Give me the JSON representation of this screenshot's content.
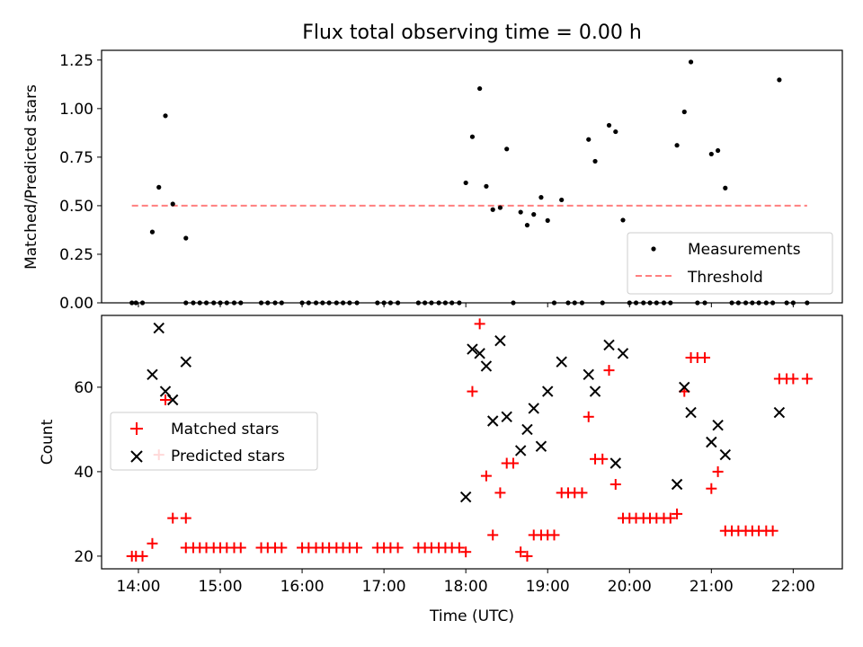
{
  "chart_data": [
    {
      "type": "scatter",
      "title": "Flux total observing time = 0.00 h",
      "xlabel": "",
      "ylabel": "Matched/Predicted stars",
      "ylim": [
        0,
        1.3
      ],
      "yticks": [
        "0.00",
        "0.25",
        "0.50",
        "0.75",
        "1.00",
        "1.25"
      ],
      "legend_position": "lower-right",
      "series": [
        {
          "name": "Measurements",
          "marker": "dot",
          "color": "#000000",
          "x": [
            13.92,
            13.97,
            14.05,
            14.17,
            14.25,
            14.33,
            14.42,
            14.58,
            14.58,
            14.67,
            14.75,
            14.83,
            14.92,
            15.0,
            15.08,
            15.17,
            15.25,
            15.5,
            15.58,
            15.67,
            15.75,
            16.0,
            16.08,
            16.17,
            16.25,
            16.33,
            16.42,
            16.5,
            16.58,
            16.67,
            16.92,
            17.0,
            17.08,
            17.17,
            17.42,
            17.5,
            17.58,
            17.67,
            17.75,
            17.83,
            17.92,
            18.0,
            18.08,
            18.17,
            18.25,
            18.33,
            18.42,
            18.5,
            18.58,
            18.67,
            18.75,
            18.83,
            18.92,
            19.0,
            19.08,
            19.17,
            19.25,
            19.33,
            19.42,
            19.5,
            19.58,
            19.67,
            19.75,
            19.83,
            19.92,
            20.0,
            20.08,
            20.17,
            20.25,
            20.33,
            20.42,
            20.5,
            20.58,
            20.67,
            20.75,
            20.83,
            20.92,
            21.0,
            21.08,
            21.17,
            21.25,
            21.33,
            21.42,
            21.5,
            21.58,
            21.67,
            21.75,
            21.83,
            21.92,
            22.0,
            22.17
          ],
          "y": [
            0,
            0,
            0,
            0.365,
            0.595,
            0.963,
            0.509,
            0.333,
            0,
            0,
            0,
            0,
            0,
            0,
            0,
            0,
            0,
            0,
            0,
            0,
            0,
            0,
            0,
            0,
            0,
            0,
            0,
            0,
            0,
            0,
            0,
            0,
            0,
            0,
            0,
            0,
            0,
            0,
            0,
            0,
            0,
            0.618,
            0.855,
            1.103,
            0.6,
            0.48,
            0.49,
            0.792,
            0,
            0.467,
            0.4,
            0.455,
            0.543,
            0.424,
            0,
            0.53,
            0,
            0,
            0,
            0.841,
            0.729,
            0,
            0.914,
            0.881,
            0.426,
            0,
            0,
            0,
            0,
            0,
            0,
            0,
            0.811,
            0.983,
            1.24,
            0,
            0,
            0.766,
            0.784,
            0.591,
            0,
            0,
            0,
            0,
            0,
            0,
            0,
            1.148,
            0,
            0,
            0
          ]
        },
        {
          "name": "Threshold",
          "line_style": "dashed",
          "color": "#ff7f7f",
          "x": [
            13.92,
            22.17
          ],
          "y": [
            0.5,
            0.5
          ]
        }
      ]
    },
    {
      "type": "scatter",
      "title": "",
      "xlabel": "Time (UTC)",
      "ylabel": "Count",
      "ylim": [
        17,
        77
      ],
      "yticks": [
        "20",
        "40",
        "60"
      ],
      "xticks": [
        "14:00",
        "15:00",
        "16:00",
        "17:00",
        "18:00",
        "19:00",
        "20:00",
        "21:00",
        "22:00"
      ],
      "legend_position": "center-left",
      "series": [
        {
          "name": "Matched stars",
          "marker": "plus",
          "color": "#ff0000",
          "x": [
            13.92,
            13.97,
            14.05,
            14.17,
            14.25,
            14.33,
            14.42,
            14.58,
            14.58,
            14.67,
            14.75,
            14.83,
            14.92,
            15.0,
            15.08,
            15.17,
            15.25,
            15.5,
            15.58,
            15.67,
            15.75,
            16.0,
            16.08,
            16.17,
            16.25,
            16.33,
            16.42,
            16.5,
            16.58,
            16.67,
            16.92,
            17.0,
            17.08,
            17.17,
            17.42,
            17.5,
            17.58,
            17.67,
            17.75,
            17.83,
            17.92,
            18.0,
            18.08,
            18.17,
            18.25,
            18.33,
            18.42,
            18.5,
            18.58,
            18.67,
            18.75,
            18.83,
            18.92,
            19.0,
            19.08,
            19.17,
            19.25,
            19.33,
            19.42,
            19.5,
            19.58,
            19.67,
            19.75,
            19.83,
            19.92,
            20.0,
            20.08,
            20.17,
            20.25,
            20.33,
            20.42,
            20.5,
            20.58,
            20.67,
            20.75,
            20.83,
            20.92,
            21.0,
            21.08,
            21.17,
            21.25,
            21.33,
            21.42,
            21.5,
            21.58,
            21.67,
            21.75,
            21.83,
            21.92,
            22.0,
            22.17
          ],
          "y": [
            20,
            20,
            20,
            23,
            44,
            57,
            29,
            22,
            29,
            22,
            22,
            22,
            22,
            22,
            22,
            22,
            22,
            22,
            22,
            22,
            22,
            22,
            22,
            22,
            22,
            22,
            22,
            22,
            22,
            22,
            22,
            22,
            22,
            22,
            22,
            22,
            22,
            22,
            22,
            22,
            22,
            21,
            59,
            75,
            39,
            25,
            35,
            42,
            42,
            21,
            20,
            25,
            25,
            25,
            25,
            35,
            35,
            35,
            35,
            53,
            43,
            43,
            64,
            37,
            29,
            29,
            29,
            29,
            29,
            29,
            29,
            29,
            30,
            59,
            67,
            67,
            67,
            36,
            40,
            26,
            26,
            26,
            26,
            26,
            26,
            26,
            26,
            62,
            62,
            62,
            62
          ]
        },
        {
          "name": "Predicted stars",
          "marker": "x",
          "color": "#000000",
          "x": [
            14.17,
            14.25,
            14.33,
            14.42,
            14.58,
            18.0,
            18.08,
            18.17,
            18.25,
            18.33,
            18.42,
            18.5,
            18.67,
            18.75,
            18.83,
            18.92,
            19.0,
            19.17,
            19.5,
            19.58,
            19.75,
            19.83,
            19.92,
            20.58,
            20.67,
            20.75,
            21.0,
            21.08,
            21.17,
            21.83
          ],
          "y": [
            63,
            74,
            59,
            57,
            66,
            34,
            69,
            68,
            65,
            52,
            71,
            53,
            45,
            50,
            55,
            46,
            59,
            66,
            63,
            59,
            70,
            42,
            68,
            37,
            60,
            54,
            47,
            51,
            44,
            54
          ]
        }
      ]
    }
  ]
}
